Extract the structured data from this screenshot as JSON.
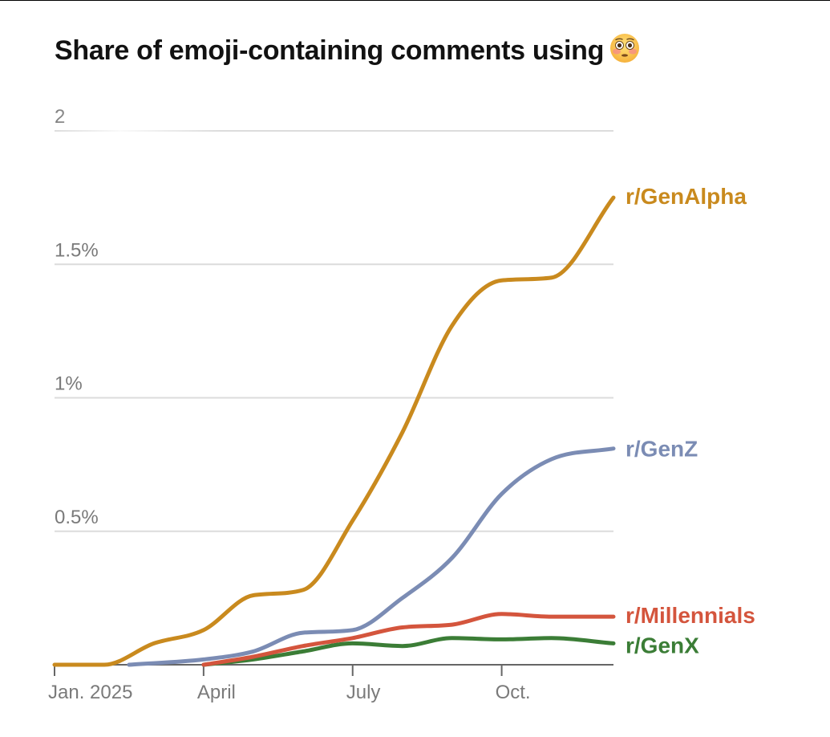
{
  "chart_data": {
    "type": "line",
    "title": "Share of emoji-containing comments using",
    "title_icon": "flushed-face-emoji-icon",
    "xlabel": "",
    "ylabel": "",
    "ylim": [
      0,
      2
    ],
    "xlim": [
      0,
      11.25
    ],
    "grid": true,
    "y_ticks": [
      {
        "value": 0.5,
        "label": "0.5%"
      },
      {
        "value": 1,
        "label": "1%"
      },
      {
        "value": 1.5,
        "label": "1.5%"
      },
      {
        "value": 2,
        "label": "2"
      }
    ],
    "x_ticks": [
      {
        "value": 0,
        "label": "Jan. 2025"
      },
      {
        "value": 3,
        "label": "April"
      },
      {
        "value": 6,
        "label": "July"
      },
      {
        "value": 9,
        "label": "Oct."
      }
    ],
    "series": [
      {
        "name": "r/GenX",
        "color": "#3b7d36",
        "x": [
          3,
          4,
          5,
          6,
          7,
          8,
          9,
          10,
          11.25
        ],
        "values": [
          0.0,
          0.02,
          0.05,
          0.08,
          0.07,
          0.1,
          0.095,
          0.1,
          0.08
        ]
      },
      {
        "name": "r/Millennials",
        "color": "#d4553d",
        "x": [
          3,
          4,
          5,
          6,
          7,
          8,
          9,
          10,
          11.25
        ],
        "values": [
          0.0,
          0.03,
          0.07,
          0.1,
          0.14,
          0.15,
          0.19,
          0.18,
          0.18
        ]
      },
      {
        "name": "r/GenZ",
        "color": "#7b8cb4",
        "x": [
          1.5,
          3,
          4,
          5,
          6,
          7,
          8,
          9,
          10,
          11.25
        ],
        "values": [
          0.0,
          0.02,
          0.05,
          0.12,
          0.13,
          0.25,
          0.4,
          0.64,
          0.77,
          0.81
        ]
      },
      {
        "name": "r/GenAlpha",
        "color": "#c98a1e",
        "x": [
          0,
          1,
          2,
          3,
          4,
          5,
          6,
          7,
          8,
          9,
          10,
          11.25
        ],
        "values": [
          0.0,
          0.0,
          0.08,
          0.13,
          0.26,
          0.28,
          0.54,
          0.87,
          1.27,
          1.44,
          1.45,
          1.75
        ]
      }
    ]
  }
}
